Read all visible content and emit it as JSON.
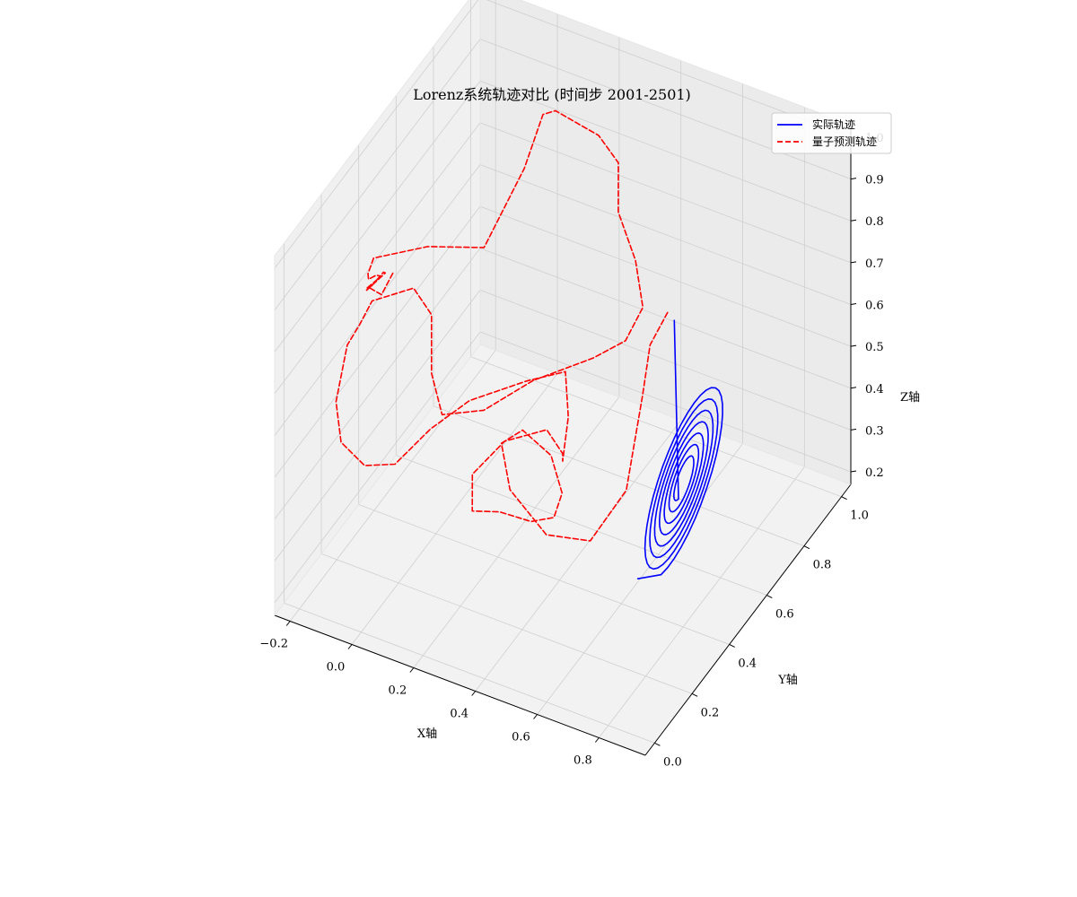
{
  "chart_data": {
    "type": "line",
    "projection": "3d",
    "title": "Lorenz系统轨迹对比 (时间步 2001-2501)",
    "xlabel": "X轴",
    "ylabel": "Y轴",
    "zlabel": "Z轴",
    "xlim": [
      -0.25,
      0.95
    ],
    "ylim": [
      -0.05,
      1.05
    ],
    "zlim": [
      0.17,
      1.03
    ],
    "x_ticks": [
      "−0.2",
      "0.0",
      "0.2",
      "0.4",
      "0.6",
      "0.8"
    ],
    "y_ticks": [
      "0.0",
      "0.2",
      "0.4",
      "0.6",
      "0.8",
      "1.0"
    ],
    "z_ticks": [
      "0.2",
      "0.3",
      "0.4",
      "0.5",
      "0.6",
      "0.7",
      "0.8",
      "0.9",
      "1.0"
    ],
    "grid": true,
    "legend_position": "upper right",
    "series": [
      {
        "name": "实际轨迹",
        "color": "#0000ff",
        "linestyle": "solid",
        "kind": "spiral",
        "center": [
          0.72,
          0.53,
          0.42
        ],
        "spiral_turns": 7,
        "radius_start": 0.21,
        "radius_end": 0.04,
        "samples": 260,
        "start_point": [
          0.69,
          0.34,
          0.29
        ],
        "entry_point": [
          0.56,
          0.75,
          0.63
        ]
      },
      {
        "name": "量子预测轨迹",
        "color": "#ff0000",
        "linestyle": "dashed",
        "kind": "polyline",
        "points": [
          [
            0.52,
            0.78,
            0.62
          ],
          [
            0.53,
            0.67,
            0.61
          ],
          [
            0.56,
            0.58,
            0.55
          ],
          [
            0.58,
            0.46,
            0.4
          ],
          [
            0.53,
            0.35,
            0.33
          ],
          [
            0.4,
            0.33,
            0.32
          ],
          [
            0.27,
            0.35,
            0.38
          ],
          [
            0.2,
            0.42,
            0.43
          ],
          [
            0.22,
            0.5,
            0.42
          ],
          [
            0.3,
            0.52,
            0.37
          ],
          [
            0.36,
            0.48,
            0.32
          ],
          [
            0.37,
            0.42,
            0.3
          ],
          [
            0.32,
            0.38,
            0.3
          ],
          [
            0.23,
            0.36,
            0.31
          ],
          [
            0.16,
            0.33,
            0.31
          ],
          [
            0.13,
            0.38,
            0.36
          ],
          [
            0.18,
            0.47,
            0.4
          ],
          [
            0.28,
            0.53,
            0.42
          ],
          [
            0.35,
            0.5,
            0.4
          ],
          [
            0.38,
            0.45,
            0.42
          ],
          [
            0.35,
            0.53,
            0.47
          ],
          [
            0.28,
            0.63,
            0.5
          ],
          [
            0.16,
            0.62,
            0.45
          ],
          [
            0.03,
            0.53,
            0.42
          ],
          [
            -0.03,
            0.42,
            0.4
          ],
          [
            -0.06,
            0.28,
            0.39
          ],
          [
            -0.11,
            0.2,
            0.42
          ],
          [
            -0.15,
            0.14,
            0.5
          ],
          [
            -0.16,
            0.13,
            0.6
          ],
          [
            -0.16,
            0.19,
            0.7
          ],
          [
            -0.12,
            0.19,
            0.76
          ],
          [
            -0.11,
            0.24,
            0.79
          ],
          [
            -0.03,
            0.33,
            0.79
          ],
          [
            0.01,
            0.36,
            0.72
          ],
          [
            0.01,
            0.36,
            0.58
          ],
          [
            0.02,
            0.4,
            0.46
          ],
          [
            0.1,
            0.49,
            0.44
          ],
          [
            0.2,
            0.59,
            0.48
          ],
          [
            0.34,
            0.68,
            0.52
          ],
          [
            0.42,
            0.72,
            0.56
          ],
          [
            0.44,
            0.78,
            0.61
          ],
          [
            0.38,
            0.84,
            0.67
          ],
          [
            0.3,
            0.88,
            0.74
          ],
          [
            0.27,
            0.93,
            0.82
          ],
          [
            0.2,
            0.94,
            0.86
          ],
          [
            0.06,
            0.94,
            0.88
          ],
          [
            0.02,
            0.94,
            0.86
          ],
          [
            0.02,
            0.84,
            0.79
          ],
          [
            -0.05,
            0.74,
            0.64
          ],
          [
            -0.13,
            0.57,
            0.72
          ],
          [
            -0.22,
            0.43,
            0.75
          ],
          [
            -0.22,
            0.4,
            0.73
          ],
          [
            -0.2,
            0.37,
            0.74
          ],
          [
            -0.18,
            0.38,
            0.75
          ],
          [
            -0.19,
            0.42,
            0.72
          ],
          [
            -0.22,
            0.39,
            0.7
          ],
          [
            -0.2,
            0.36,
            0.72
          ],
          [
            -0.17,
            0.41,
            0.74
          ],
          [
            -0.2,
            0.45,
            0.71
          ],
          [
            -0.22,
            0.41,
            0.69
          ],
          [
            -0.17,
            0.39,
            0.7
          ],
          [
            -0.16,
            0.44,
            0.73
          ]
        ]
      }
    ]
  }
}
